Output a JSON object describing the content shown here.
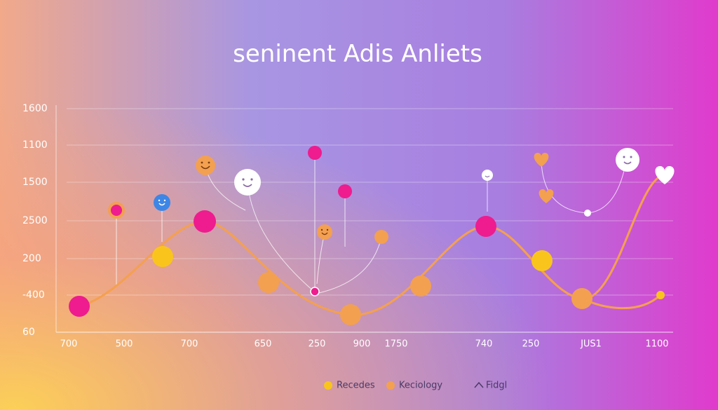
{
  "title": "seninent  Adis Anliets",
  "y_axis_labels": [
    "1600",
    "1100",
    "1500",
    "2500",
    "200",
    "-400",
    "60"
  ],
  "x_axis_labels": [
    "700",
    "500",
    "700",
    "650",
    "250",
    "900",
    "1750",
    "740",
    "250",
    "JUS1",
    "1100"
  ],
  "legend": [
    "Recedes",
    "Keciology",
    "Fidgl"
  ]
}
